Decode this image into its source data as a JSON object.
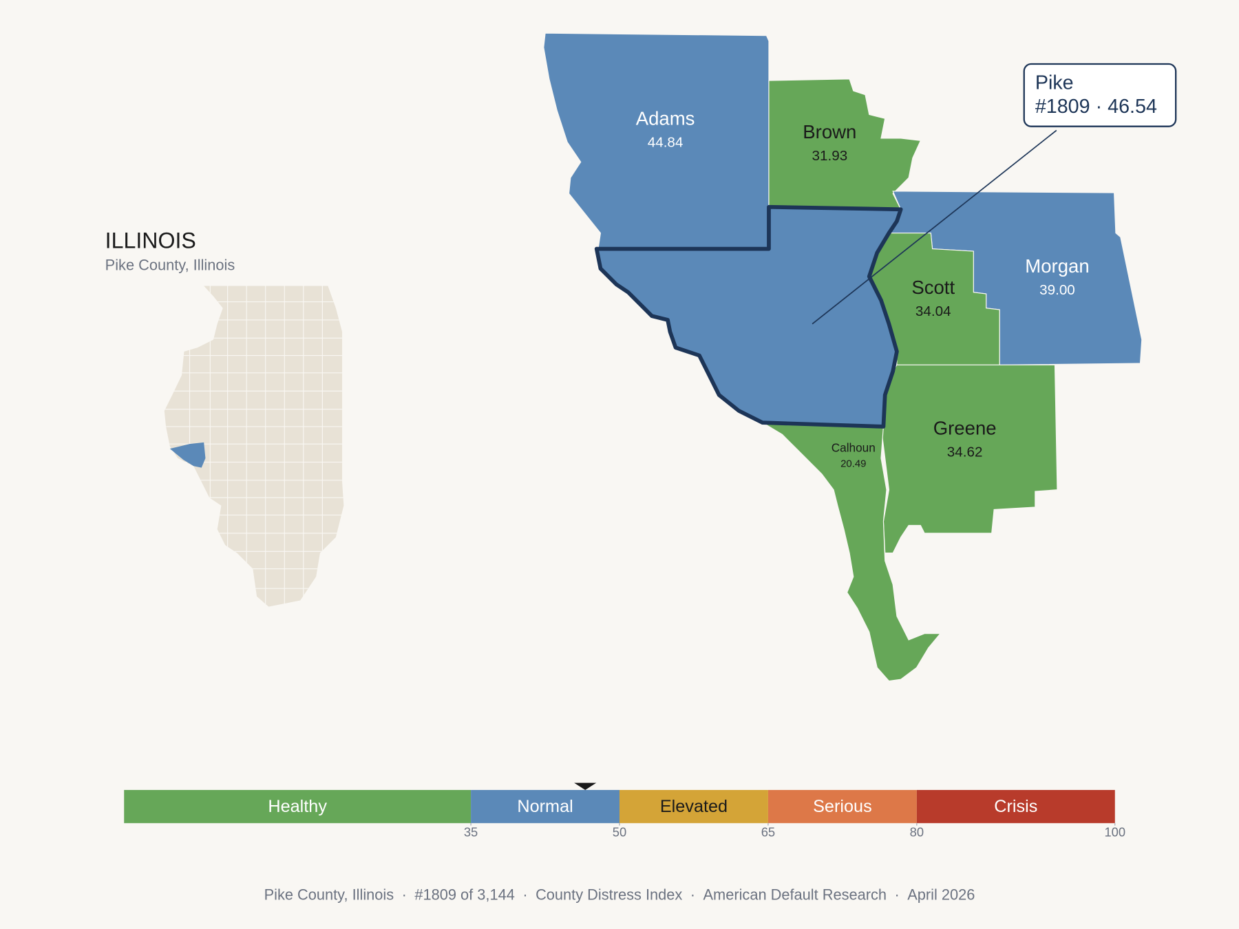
{
  "header": {
    "title": "ILLINOIS",
    "subtitle": "Pike County, Illinois"
  },
  "counties": [
    {
      "name": "Adams",
      "value": 44.84,
      "color": "#5b89b8"
    },
    {
      "name": "Brown",
      "value": 31.93,
      "color": "#66a758"
    },
    {
      "name": "Morgan",
      "value": 39.0,
      "value_label": "39.00",
      "color": "#5b89b8"
    },
    {
      "name": "Scott",
      "value": 34.04,
      "color": "#66a758"
    },
    {
      "name": "Greene",
      "value": 34.62,
      "color": "#66a758"
    },
    {
      "name": "Calhoun",
      "value": 20.49,
      "color": "#66a758"
    }
  ],
  "focus": {
    "name": "Pike",
    "rank": "#1809",
    "separator": "·",
    "value": 46.54,
    "color": "#5b89b8"
  },
  "scale": {
    "min": 0,
    "ticks": [
      35,
      50,
      65,
      80,
      100
    ],
    "bands": [
      {
        "label": "Healthy",
        "color": "#66a758",
        "text_color": "#ffffff"
      },
      {
        "label": "Normal",
        "color": "#5b89b8",
        "text_color": "#ffffff"
      },
      {
        "label": "Elevated",
        "color": "#d4a437",
        "text_color": "#1a1a1a"
      },
      {
        "label": "Serious",
        "color": "#dd7848",
        "text_color": "#ffffff"
      },
      {
        "label": "Crisis",
        "color": "#b83b2b",
        "text_color": "#ffffff"
      }
    ]
  },
  "footer": {
    "separator": "·",
    "items": [
      "Pike County, Illinois",
      "#1809 of 3,144",
      "County Distress Index",
      "American Default Research",
      "April 2026"
    ]
  }
}
